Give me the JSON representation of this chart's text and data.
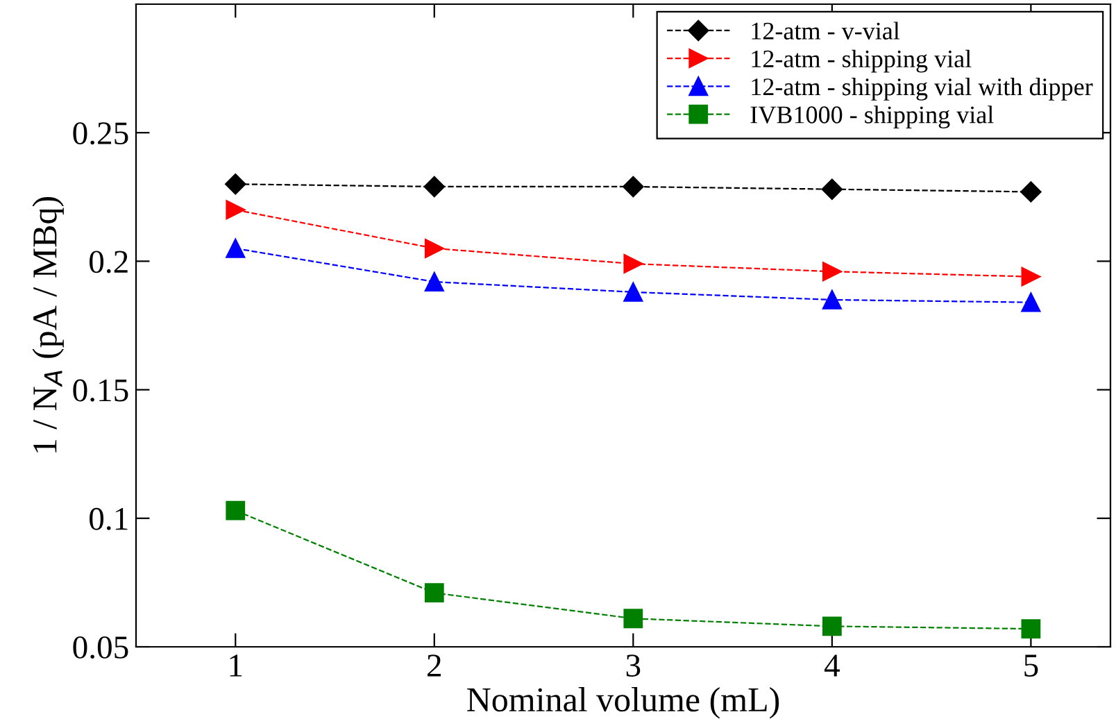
{
  "chart_data": {
    "type": "line",
    "xlabel": "Nominal volume (mL)",
    "ylabel": "1 / N$_{A}$ (pA / MBq)",
    "x": [
      1,
      2,
      3,
      4,
      5
    ],
    "xlim": [
      0.5,
      5.4
    ],
    "xticks": [
      1,
      2,
      3,
      4,
      5
    ],
    "ylim": [
      0.05,
      0.3
    ],
    "yticks": [
      0.05,
      0.1,
      0.15,
      0.2,
      0.25
    ],
    "line_style": "dashed",
    "legend": "top right",
    "grid": false,
    "series": [
      {
        "name": "12-atm - v-vial",
        "color": "#000000",
        "marker": "diamond",
        "values": [
          0.23,
          0.229,
          0.229,
          0.228,
          0.227
        ]
      },
      {
        "name": "12-atm - shipping vial",
        "color": "#ff0000",
        "marker": "triangle_right",
        "values": [
          0.22,
          0.205,
          0.199,
          0.196,
          0.194
        ]
      },
      {
        "name": "12-atm - shipping vial with dipper",
        "color": "#0000ff",
        "marker": "triangle",
        "values": [
          0.205,
          0.192,
          0.188,
          0.185,
          0.184
        ]
      },
      {
        "name": "IVB1000 - shipping vial",
        "color": "#008000",
        "marker": "square",
        "values": [
          0.103,
          0.071,
          0.061,
          0.058,
          0.057
        ]
      }
    ]
  }
}
